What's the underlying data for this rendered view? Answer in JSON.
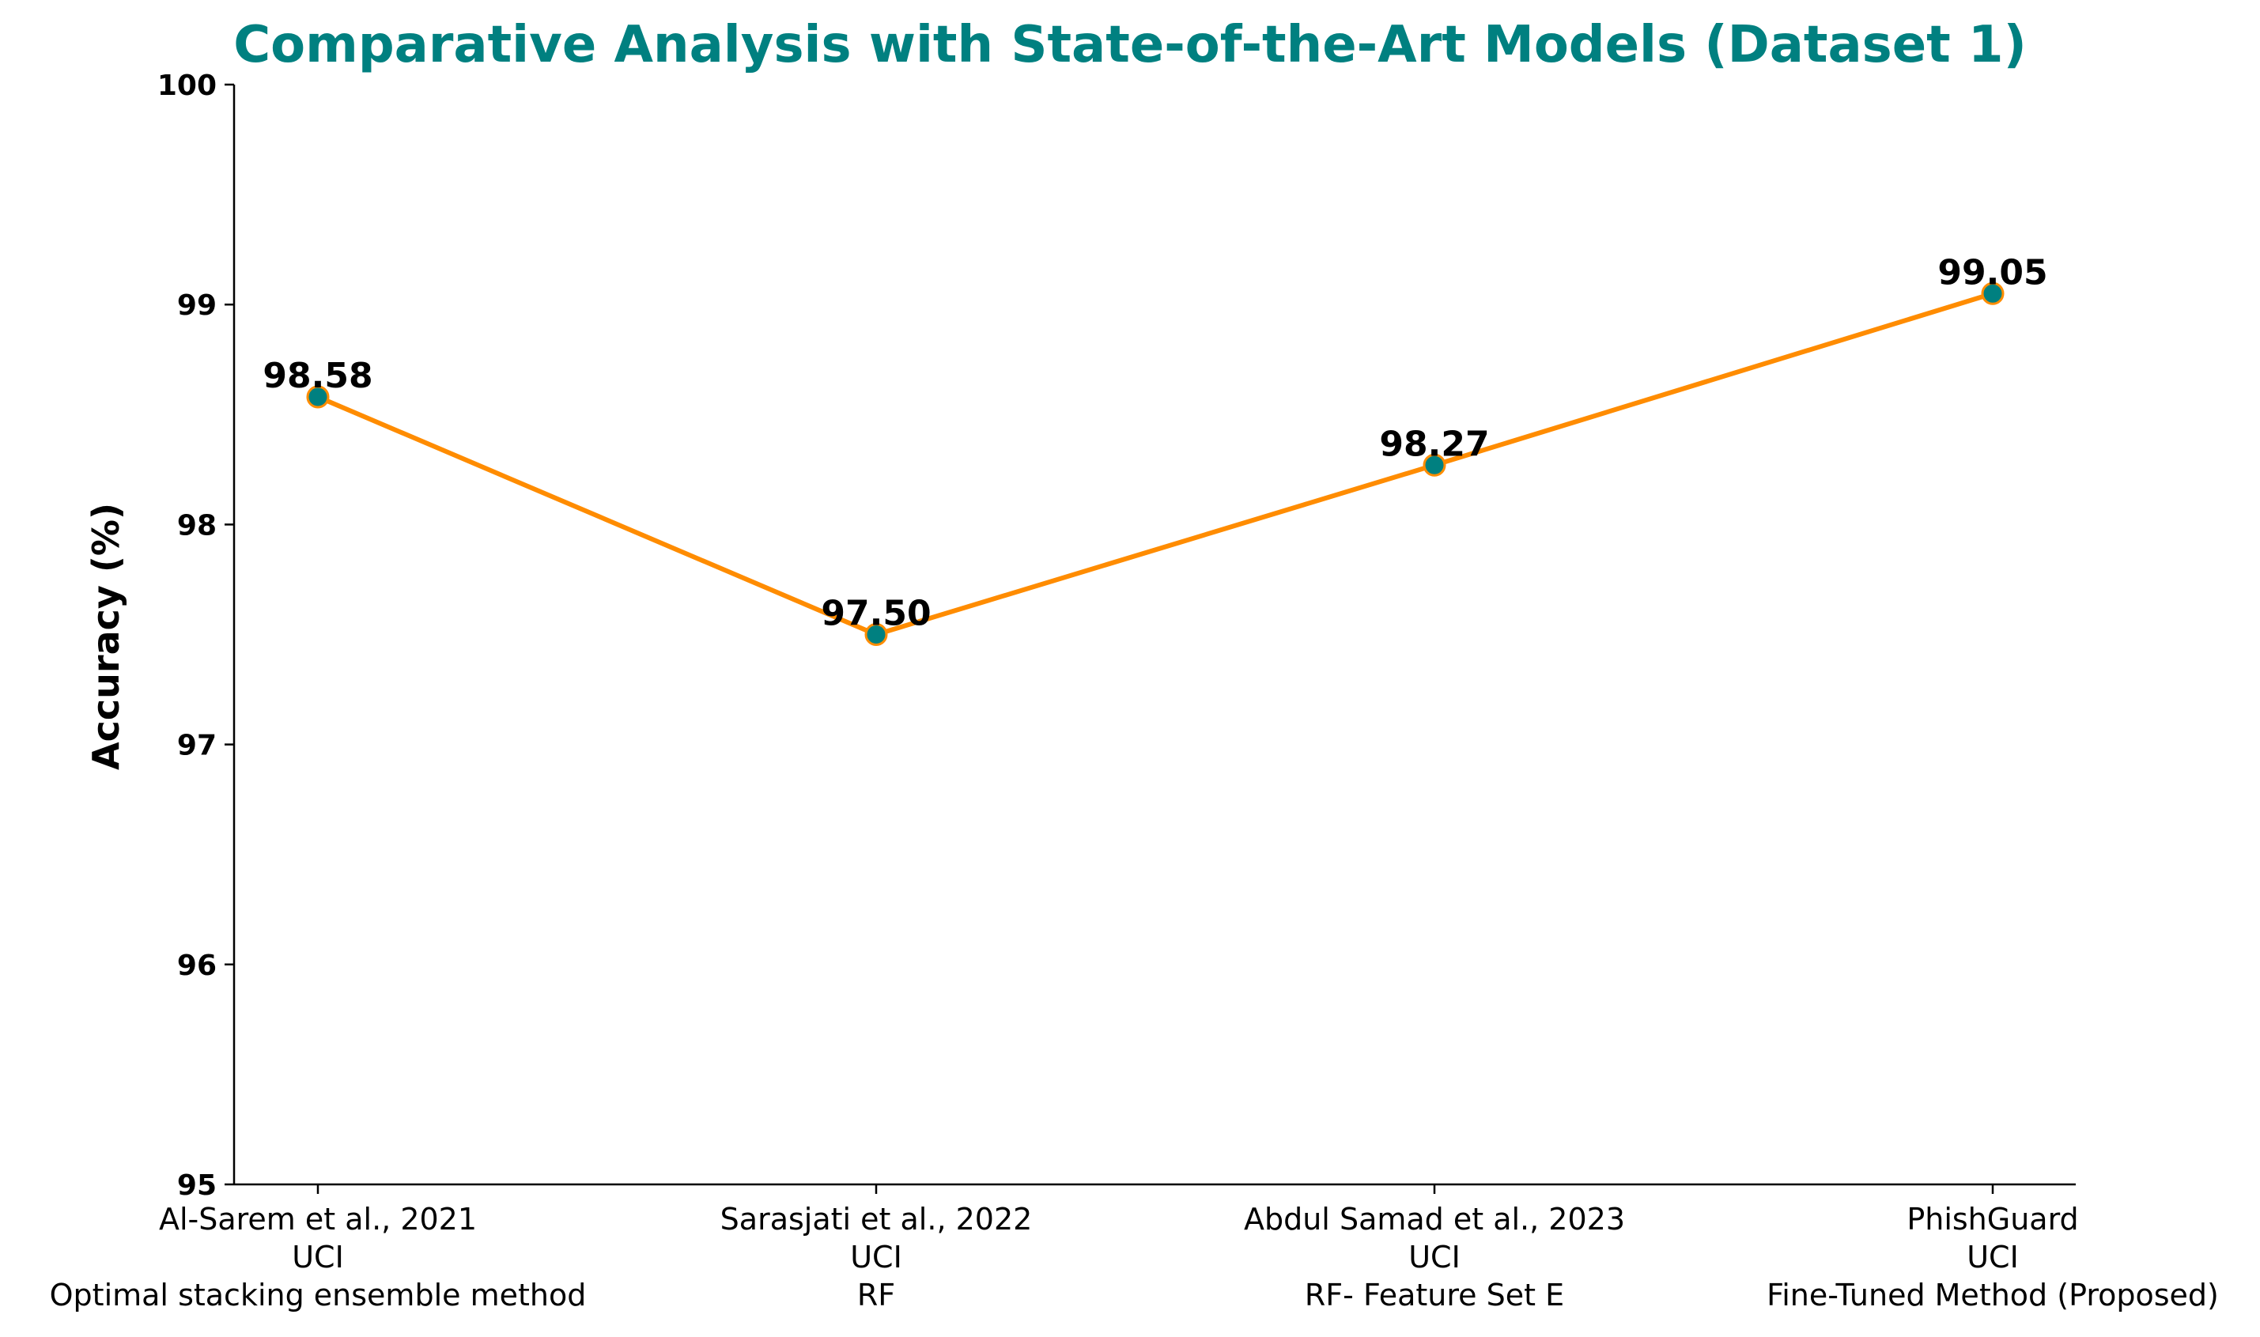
{
  "chart_data": {
    "type": "line",
    "title": "Comparative Analysis with State-of-the-Art Models (Dataset 1)",
    "xlabel": "",
    "ylabel": "Accuracy (%)",
    "ylim": [
      95,
      100
    ],
    "yticks": [
      "95",
      "96",
      "97",
      "98",
      "99",
      "100"
    ],
    "categories": [
      [
        "Al-Sarem et al., 2021",
        "UCI",
        "Optimal stacking ensemble method"
      ],
      [
        "Sarasjati et al., 2022",
        "UCI",
        "RF"
      ],
      [
        "Abdul Samad et al., 2023",
        "UCI",
        "RF- Feature Set E"
      ],
      [
        "PhishGuard",
        "UCI",
        "Fine-Tuned Method (Proposed)"
      ]
    ],
    "values": [
      98.58,
      97.5,
      98.27,
      99.05
    ],
    "data_labels": [
      "98.58",
      "97.50",
      "98.27",
      "99.05"
    ],
    "grid": false,
    "colors": {
      "title": "#008080",
      "line": "#FF8C00",
      "marker_fill": "#008080",
      "marker_edge": "#FF8C00",
      "text": "#000000",
      "axis": "#000000"
    }
  }
}
